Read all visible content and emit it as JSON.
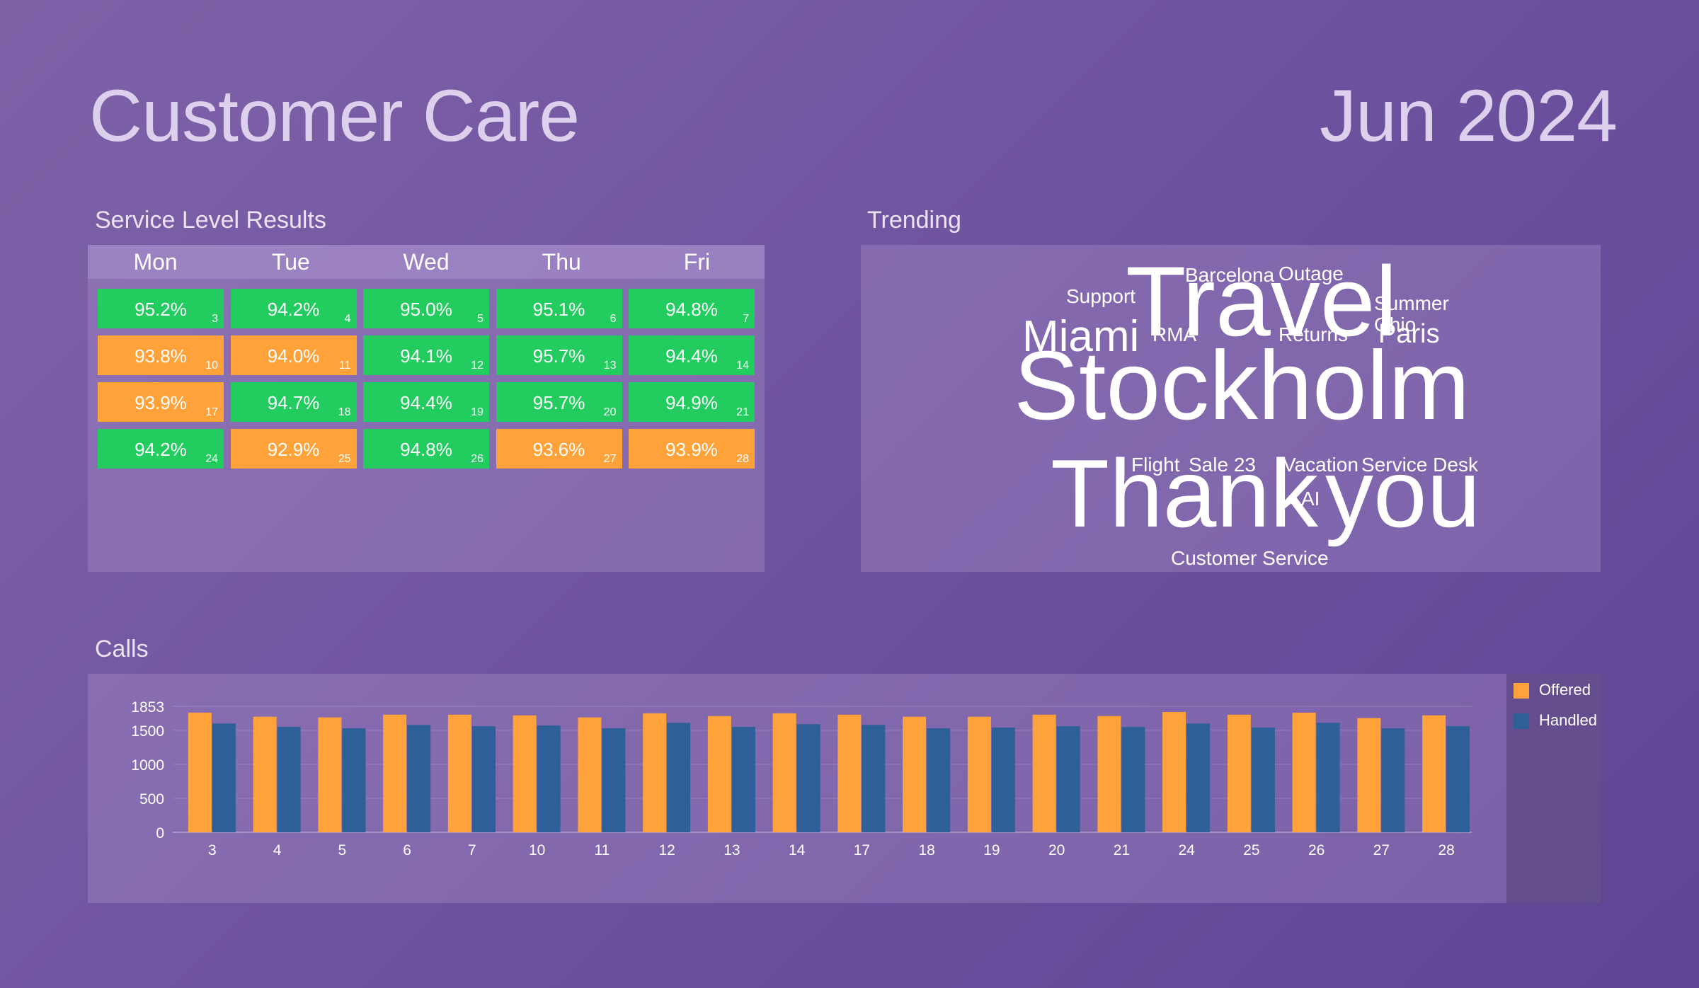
{
  "header": {
    "title": "Customer Care",
    "month": "Jun 2024"
  },
  "service_level": {
    "label": "Service Level Results",
    "days": [
      "Mon",
      "Tue",
      "Wed",
      "Thu",
      "Fri"
    ],
    "weeks": [
      [
        {
          "pct": "95.2%",
          "day": "3",
          "status": "good"
        },
        {
          "pct": "94.2%",
          "day": "4",
          "status": "good"
        },
        {
          "pct": "95.0%",
          "day": "5",
          "status": "good"
        },
        {
          "pct": "95.1%",
          "day": "6",
          "status": "good"
        },
        {
          "pct": "94.8%",
          "day": "7",
          "status": "good"
        }
      ],
      [
        {
          "pct": "93.8%",
          "day": "10",
          "status": "warn"
        },
        {
          "pct": "94.0%",
          "day": "11",
          "status": "warn"
        },
        {
          "pct": "94.1%",
          "day": "12",
          "status": "good"
        },
        {
          "pct": "95.7%",
          "day": "13",
          "status": "good"
        },
        {
          "pct": "94.4%",
          "day": "14",
          "status": "good"
        }
      ],
      [
        {
          "pct": "93.9%",
          "day": "17",
          "status": "warn"
        },
        {
          "pct": "94.7%",
          "day": "18",
          "status": "good"
        },
        {
          "pct": "94.4%",
          "day": "19",
          "status": "good"
        },
        {
          "pct": "95.7%",
          "day": "20",
          "status": "good"
        },
        {
          "pct": "94.9%",
          "day": "21",
          "status": "good"
        }
      ],
      [
        {
          "pct": "94.2%",
          "day": "24",
          "status": "good"
        },
        {
          "pct": "92.9%",
          "day": "25",
          "status": "warn"
        },
        {
          "pct": "94.8%",
          "day": "26",
          "status": "good"
        },
        {
          "pct": "93.6%",
          "day": "27",
          "status": "warn"
        },
        {
          "pct": "93.9%",
          "day": "28",
          "status": "warn"
        }
      ]
    ],
    "colors": {
      "good": "#22cc5e",
      "warn": "#ffa23a"
    }
  },
  "trending": {
    "label": "Trending",
    "words": [
      "Barcelona",
      "Outage",
      "Support",
      "Travel",
      "Summer",
      "Ohio",
      "Miami",
      "RMA",
      "Returns",
      "Paris",
      "Stockholm",
      "Flight",
      "Sale 23",
      "Vacation",
      "Service Desk",
      "Thank",
      "AI",
      "you",
      "Customer Service"
    ]
  },
  "calls": {
    "label": "Calls",
    "chart_data": {
      "type": "bar",
      "title": "",
      "xlabel": "",
      "ylabel": "",
      "categories": [
        "3",
        "4",
        "5",
        "6",
        "7",
        "10",
        "11",
        "12",
        "13",
        "14",
        "17",
        "18",
        "19",
        "20",
        "21",
        "24",
        "25",
        "26",
        "27",
        "28"
      ],
      "yticks": [
        0,
        500,
        1000,
        1500,
        1853
      ],
      "ylim": [
        0,
        1853
      ],
      "legend": "right",
      "series": [
        {
          "name": "Offered",
          "color": "#ffa23a",
          "values": [
            1760,
            1700,
            1690,
            1730,
            1730,
            1720,
            1690,
            1750,
            1710,
            1750,
            1730,
            1700,
            1700,
            1730,
            1710,
            1770,
            1730,
            1760,
            1680,
            1720
          ]
        },
        {
          "name": "Handled",
          "color": "#2d5f98",
          "values": [
            1600,
            1550,
            1530,
            1580,
            1560,
            1570,
            1530,
            1610,
            1550,
            1590,
            1580,
            1530,
            1540,
            1560,
            1550,
            1600,
            1540,
            1610,
            1530,
            1560
          ]
        }
      ]
    }
  }
}
